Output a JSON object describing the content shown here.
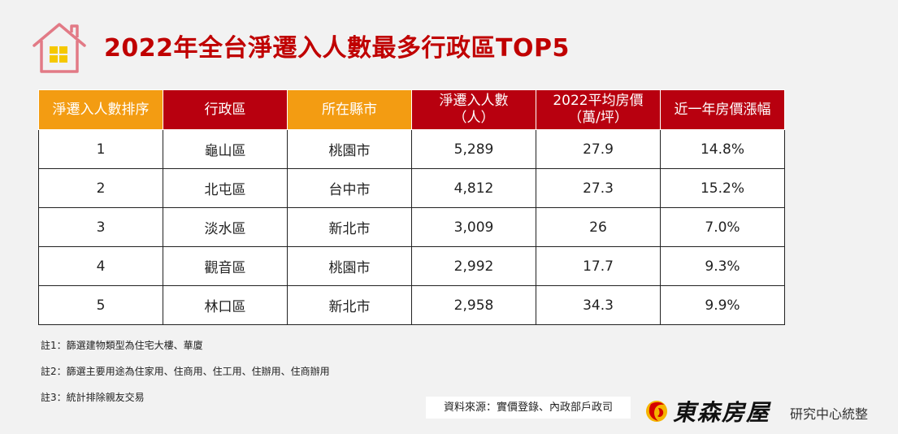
{
  "title": "2022年全台淨遷入人數最多行政區TOP5",
  "colors": {
    "orange": "#f39c12",
    "red": "#b8000f",
    "title": "#c00000",
    "house": "#e27a86",
    "window": "#f5c800"
  },
  "table": {
    "headers": [
      {
        "line1": "淨遷入人數排序",
        "line2": ""
      },
      {
        "line1": "行政區",
        "line2": ""
      },
      {
        "line1": "所在縣市",
        "line2": ""
      },
      {
        "line1": "淨遷入人數",
        "line2": "（人）"
      },
      {
        "line1": "2022平均房價",
        "line2": "（萬/坪）"
      },
      {
        "line1": "近一年房價漲幅",
        "line2": ""
      }
    ],
    "rows": [
      {
        "rank": "1",
        "district": "龜山區",
        "city": "桃園市",
        "net": "5,289",
        "price": "27.9",
        "change": "14.8%"
      },
      {
        "rank": "2",
        "district": "北屯區",
        "city": "台中市",
        "net": "4,812",
        "price": "27.3",
        "change": "15.2%"
      },
      {
        "rank": "3",
        "district": "淡水區",
        "city": "新北市",
        "net": "3,009",
        "price": "26",
        "change": "7.0%"
      },
      {
        "rank": "4",
        "district": "觀音區",
        "city": "桃園市",
        "net": "2,992",
        "price": "17.7",
        "change": "9.3%"
      },
      {
        "rank": "5",
        "district": "林口區",
        "city": "新北市",
        "net": "2,958",
        "price": "34.3",
        "change": "9.9%"
      }
    ]
  },
  "notes": [
    "註1：篩選建物類型為住宅大樓、華廈",
    "註2：篩選主要用途為住家用、住商用、住工用、住辦用、住商辦用",
    "註3：統計排除親友交易"
  ],
  "source": "資料來源：實價登錄、內政部戶政司",
  "brand": "東森房屋",
  "dept": "研究中心統整",
  "icons": {
    "header": "house-icon",
    "logo": "ettoday-logo-icon"
  }
}
